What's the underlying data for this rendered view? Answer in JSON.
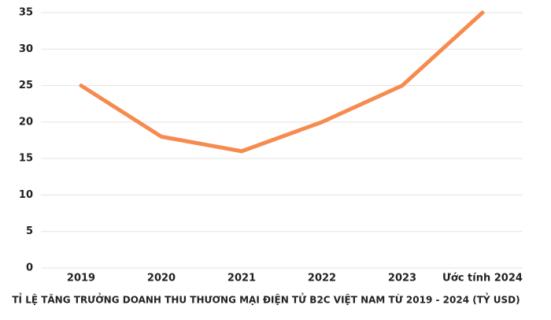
{
  "chart_data": {
    "type": "line",
    "title": "TỈ LỆ TĂNG TRƯỞNG DOANH THU THƯƠNG MẠI ĐIỆN TỬ B2C VIỆT NAM TỪ 2019 - 2024 (TỶ USD)",
    "categories": [
      "2019",
      "2020",
      "2021",
      "2022",
      "2023",
      "Ước tính 2024"
    ],
    "values": [
      25,
      18,
      16,
      20,
      25,
      35
    ],
    "color": "#f68b4f",
    "ylim": [
      0,
      35
    ],
    "yticks": [
      0,
      5,
      10,
      15,
      20,
      25,
      30,
      35
    ],
    "grid": true
  }
}
